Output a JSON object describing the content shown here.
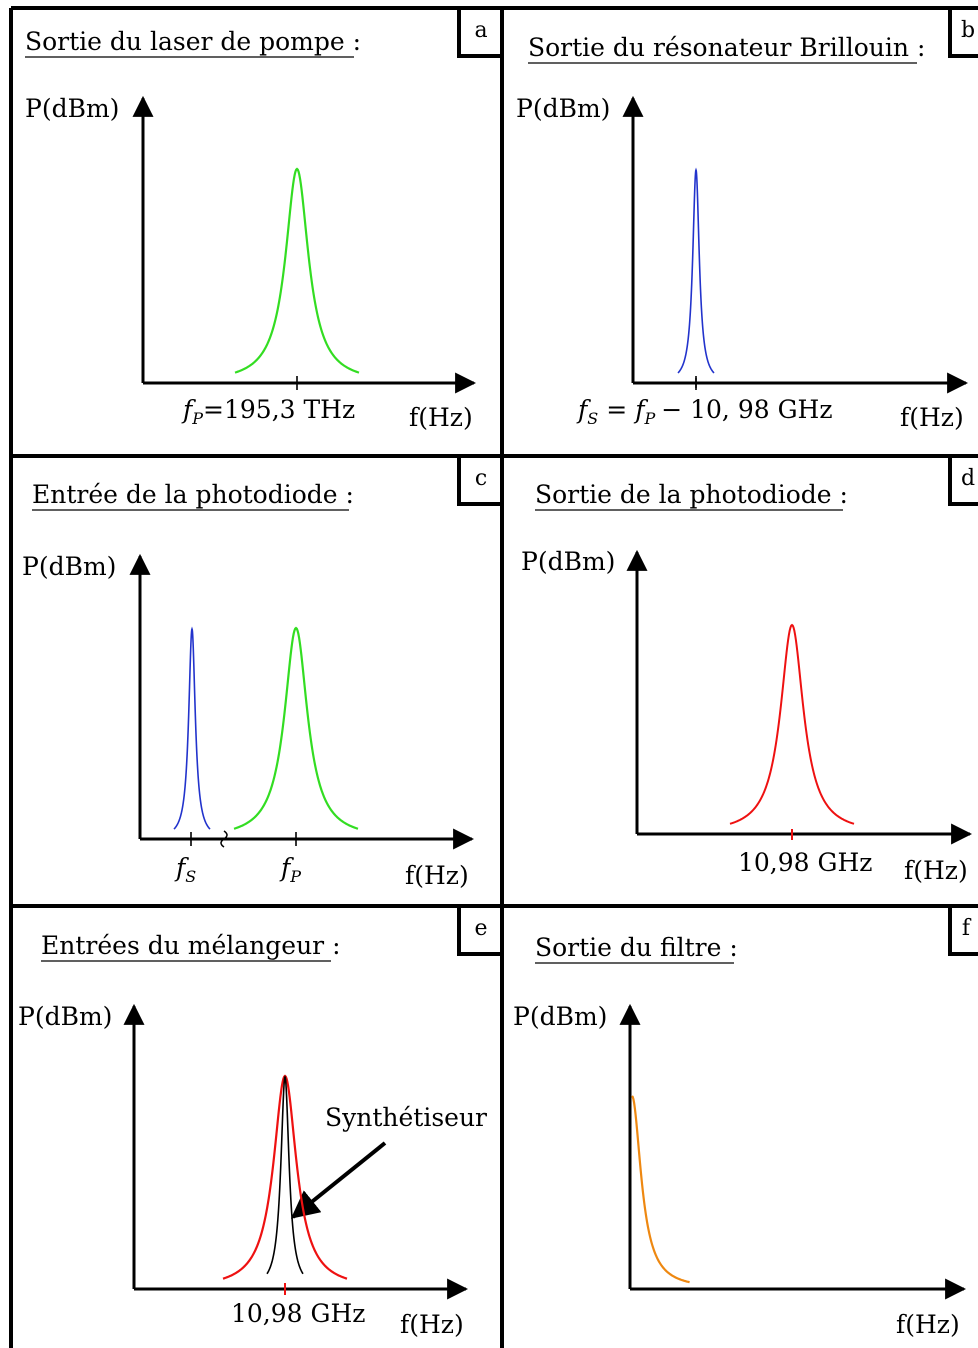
{
  "colors": {
    "pump": "#33dd22",
    "stokes": "#2233cc",
    "beat": "#ee1111",
    "synth": "#000000",
    "filter": "#ee8811"
  },
  "panels": [
    {
      "id": "a",
      "corner_label": "a",
      "title": "Sortie du laser de pompe :",
      "ylabel": "P(dBm)",
      "xlabel": "f(Hz)",
      "tick_label": "=195,3 THz"
    },
    {
      "id": "b",
      "corner_label": "b",
      "title": "Sortie du résonateur Brillouin :",
      "ylabel": "P(dBm)",
      "xlabel": "f(Hz)",
      "tick_label": "− 10, 98 GHz"
    },
    {
      "id": "c",
      "corner_label": "c",
      "title": "Entrée de la photodiode :",
      "ylabel": "P(dBm)",
      "xlabel": "f(Hz)"
    },
    {
      "id": "d",
      "corner_label": "d",
      "title": "Sortie de la photodiode :",
      "ylabel": "P(dBm)",
      "xlabel": "f(Hz)",
      "tick_label": "10,98 GHz"
    },
    {
      "id": "e",
      "corner_label": "e",
      "title": "Entrées du mélangeur :",
      "ylabel": "P(dBm)",
      "xlabel": "f(Hz)",
      "tick_label": "10,98 GHz",
      "annotation": "Synthétiseur"
    },
    {
      "id": "f",
      "corner_label": "f",
      "title": "Sortie du filtre :",
      "ylabel": "P(dBm)",
      "xlabel": "f(Hz)"
    }
  ],
  "symbols": {
    "f": "f",
    "sub_p": "P",
    "sub_s": "S",
    "eq": "="
  }
}
